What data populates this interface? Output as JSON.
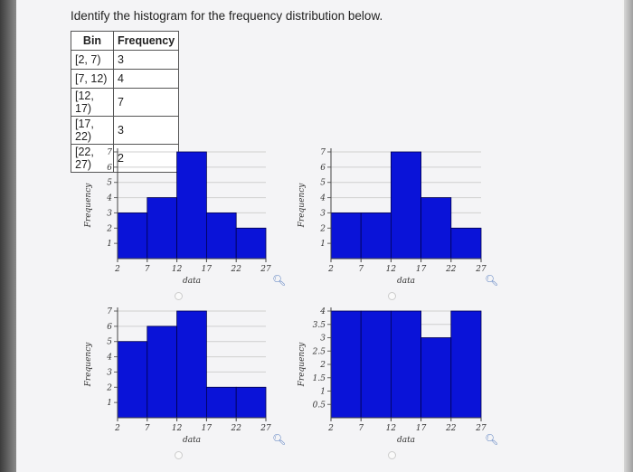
{
  "question": "Identify the histogram for the frequency distribution below.",
  "table": {
    "headers": [
      "Bin",
      "Frequency"
    ],
    "rows": [
      {
        "bin": "[2, 7)",
        "freq": "3"
      },
      {
        "bin": "[7, 12)",
        "freq": "4"
      },
      {
        "bin": "[12, 17)",
        "freq": "7"
      },
      {
        "bin": "[17, 22)",
        "freq": "3"
      },
      {
        "bin": "[22, 27)",
        "freq": "2"
      }
    ]
  },
  "colors": {
    "bar": "#0a13d8",
    "bar_border": "#000050",
    "grid": "#cfcfcf"
  },
  "chart_data": [
    {
      "type": "bar",
      "xlabel": "data",
      "ylabel": "Frequency",
      "categories": [
        "[2,7)",
        "[7,12)",
        "[12,17)",
        "[17,22)",
        "[22,27)"
      ],
      "x_ticks": [
        "2",
        "7",
        "12",
        "17",
        "22",
        "27"
      ],
      "y_ticks": [
        "1",
        "2",
        "3",
        "4",
        "5",
        "6",
        "7"
      ],
      "ylim": [
        0,
        7
      ],
      "values": [
        3,
        4,
        7,
        3,
        2
      ],
      "grid": true
    },
    {
      "type": "bar",
      "xlabel": "data",
      "ylabel": "Frequency",
      "categories": [
        "[2,7)",
        "[7,12)",
        "[12,17)",
        "[17,22)",
        "[22,27)"
      ],
      "x_ticks": [
        "2",
        "7",
        "12",
        "17",
        "22",
        "27"
      ],
      "y_ticks": [
        "1",
        "2",
        "3",
        "4",
        "5",
        "6",
        "7"
      ],
      "ylim": [
        0,
        7
      ],
      "values": [
        3,
        3,
        7,
        4,
        2
      ],
      "grid": true
    },
    {
      "type": "bar",
      "xlabel": "data",
      "ylabel": "Frequency",
      "categories": [
        "[2,7)",
        "[7,12)",
        "[12,17)",
        "[17,22)",
        "[22,27)"
      ],
      "x_ticks": [
        "2",
        "7",
        "12",
        "17",
        "22",
        "27"
      ],
      "y_ticks": [
        "1",
        "2",
        "3",
        "4",
        "5",
        "6",
        "7"
      ],
      "ylim": [
        0,
        7
      ],
      "values": [
        5,
        6,
        7,
        2,
        2
      ],
      "grid": true
    },
    {
      "type": "bar",
      "xlabel": "data",
      "ylabel": "Frequency",
      "categories": [
        "[2,7)",
        "[7,12)",
        "[12,17)",
        "[17,22)",
        "[22,27)"
      ],
      "x_ticks": [
        "2",
        "7",
        "12",
        "17",
        "22",
        "27"
      ],
      "y_ticks": [
        "0.5",
        "1",
        "1.5",
        "2",
        "2.5",
        "3",
        "3.5",
        "4"
      ],
      "ylim": [
        0,
        4
      ],
      "values": [
        4,
        4,
        4,
        3,
        4
      ],
      "grid": true
    }
  ],
  "zoom_icon": "magnifier-icon",
  "option_icon": "radio-circle-icon"
}
